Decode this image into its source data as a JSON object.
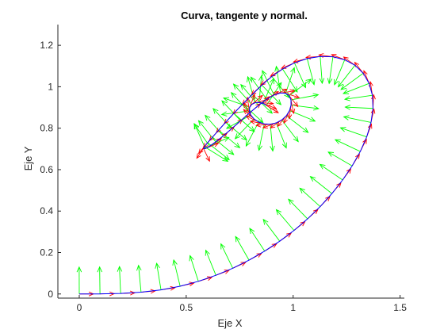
{
  "chart_data": {
    "type": "line",
    "title": "Curva, tangente y normal.",
    "xlabel": "Eje X",
    "ylabel": "Eje Y",
    "xlim": [
      -0.1,
      1.52
    ],
    "ylim": [
      -0.02,
      1.3
    ],
    "xticks": [
      0,
      0.5,
      1,
      1.5
    ],
    "xtick_labels": [
      "0",
      "0.5",
      "1",
      "1.5"
    ],
    "yticks": [
      0,
      0.2,
      0.4,
      0.6,
      0.8,
      1,
      1.2
    ],
    "ytick_labels": [
      "0",
      "0.2",
      "0.4",
      "0.6",
      "0.8",
      "1",
      "1.2"
    ],
    "grid": false,
    "colors": {
      "curve": "#0000ff",
      "tangent": "#ff0000",
      "normal": "#00ff00",
      "axes": "#262626"
    },
    "series": [
      {
        "kind": "curve",
        "x": [
          0,
          0.0969,
          0.1934,
          0.2889,
          0.3821,
          0.4716,
          0.557,
          0.6389,
          0.7178,
          0.7938,
          0.867,
          0.9372,
          1.0041,
          1.0674,
          1.1265,
          1.1812,
          1.2313,
          1.2758,
          1.3139,
          1.3439,
          1.3641,
          1.3733,
          1.3706,
          1.3553,
          1.3278,
          1.2892,
          1.2412,
          1.1861,
          1.1265,
          1.0655,
          1.0061,
          0.9506,
          0.9,
          0.8535,
          0.8089,
          0.7645,
          0.7225,
          0.6848,
          0.6516,
          0.623,
          0.6001,
          0.5855,
          0.5815,
          0.5897,
          0.6093,
          0.638,
          0.6732,
          0.7128,
          0.7547,
          0.797,
          0.8383,
          0.8762,
          0.9108,
          0.9411,
          0.965,
          0.9814,
          0.9898,
          0.9902,
          0.983,
          0.9684,
          0.947,
          0.9211,
          0.8932,
          0.865,
          0.8386,
          0.817,
          0.802,
          0.795,
          0.797,
          0.8065,
          0.822,
          0.841,
          0.86,
          0.8748
        ],
        "y": [
          0,
          0.0003,
          0.0025,
          0.0085,
          0.0198,
          0.0374,
          0.061,
          0.0901,
          0.1243,
          0.1633,
          0.2068,
          0.2547,
          0.3066,
          0.3624,
          0.4218,
          0.4845,
          0.5501,
          0.618,
          0.6876,
          0.758,
          0.8278,
          0.8954,
          0.9588,
          1.016,
          1.065,
          1.1036,
          1.1304,
          1.1446,
          1.1462,
          1.1359,
          1.1151,
          1.0856,
          1.0493,
          1.0078,
          0.9629,
          0.9167,
          0.8714,
          0.8289,
          0.7904,
          0.7569,
          0.7299,
          0.7108,
          0.7011,
          0.7017,
          0.713,
          0.734,
          0.763,
          0.7978,
          0.836,
          0.8744,
          0.91,
          0.9395,
          0.96,
          0.9698,
          0.9684,
          0.9566,
          0.9365,
          0.9115,
          0.8852,
          0.8605,
          0.84,
          0.8258,
          0.8192,
          0.8208,
          0.8299,
          0.845,
          0.8636,
          0.8833,
          0.9009,
          0.9146,
          0.9226,
          0.924,
          0.9194,
          0.91
        ]
      },
      {
        "kind": "tangent",
        "arrow_length": 0.066
      },
      {
        "kind": "normal",
        "arrow_length": 0.13
      }
    ]
  }
}
